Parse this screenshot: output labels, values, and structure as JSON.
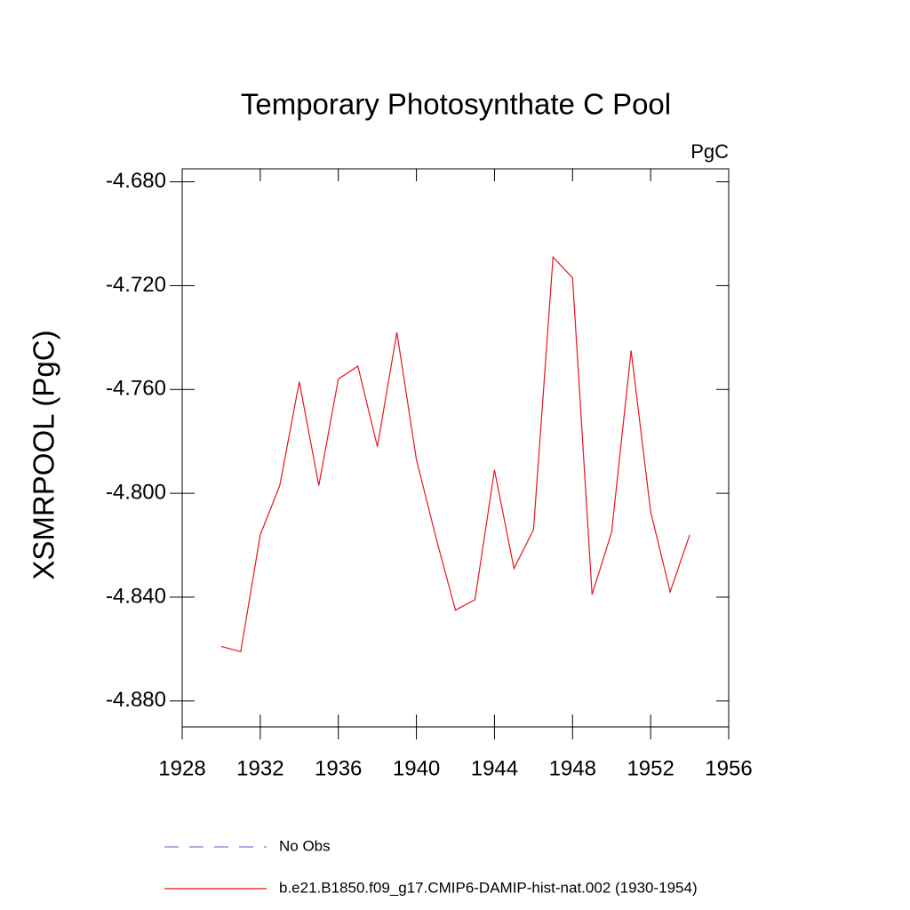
{
  "chart_data": {
    "type": "line",
    "title": "Temporary Photosynthate C Pool",
    "units": "PgC",
    "ylabel": "XSMRPOOL  (PgC)",
    "x": [
      1930,
      1931,
      1932,
      1933,
      1934,
      1935,
      1936,
      1937,
      1938,
      1939,
      1940,
      1941,
      1942,
      1943,
      1944,
      1945,
      1946,
      1947,
      1948,
      1949,
      1950,
      1951,
      1952,
      1953,
      1954
    ],
    "series": [
      {
        "name": "No Obs",
        "color": "#7b7bd6",
        "dashed": true,
        "values": [
          null,
          null,
          null,
          null,
          null,
          null,
          null,
          null,
          null,
          null,
          null,
          null,
          null,
          null,
          null,
          null,
          null,
          null,
          null,
          null,
          null,
          null,
          null,
          null,
          null
        ]
      },
      {
        "name": "b.e21.B1850.f09_g17.CMIP6-DAMIP-hist-nat.002 (1930-1954)",
        "color": "#e8141e",
        "dashed": false,
        "values": [
          -4.859,
          -4.861,
          -4.816,
          -4.797,
          -4.757,
          -4.797,
          -4.756,
          -4.751,
          -4.782,
          -4.738,
          -4.787,
          -4.817,
          -4.845,
          -4.841,
          -4.791,
          -4.829,
          -4.814,
          -4.709,
          -4.717,
          -4.839,
          -4.815,
          -4.745,
          -4.807,
          -4.838,
          -4.816
        ]
      }
    ],
    "xlim": [
      1928,
      1956
    ],
    "xticks": [
      1928,
      1932,
      1936,
      1940,
      1944,
      1948,
      1952,
      1956
    ],
    "ylim": [
      -4.89,
      -4.675
    ],
    "yticks": [
      {
        "value": -4.88,
        "label": "-4.880"
      },
      {
        "value": -4.84,
        "label": "-4.840"
      },
      {
        "value": -4.8,
        "label": "-4.800"
      },
      {
        "value": -4.76,
        "label": "-4.760"
      },
      {
        "value": -4.72,
        "label": "-4.720"
      },
      {
        "value": -4.68,
        "label": "-4.680"
      }
    ]
  }
}
